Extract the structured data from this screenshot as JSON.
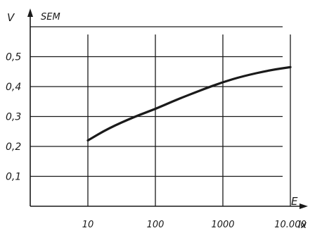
{
  "chart_data": {
    "type": "line",
    "title": "",
    "xlabel": "E",
    "xlabel_suffix": "lx",
    "ylabel": "V",
    "ylabel_suffix": "SEM",
    "x_scale": "log",
    "xlim": [
      10,
      17000
    ],
    "ylim": [
      0,
      0.6
    ],
    "x_ticks": [
      10,
      100,
      1000,
      10000
    ],
    "x_tick_labels": [
      "10",
      "100",
      "1000",
      "10.000"
    ],
    "y_ticks": [
      0.1,
      0.2,
      0.3,
      0.4,
      0.5
    ],
    "y_tick_labels": [
      "0,1",
      "0,2",
      "0,3",
      "0,4",
      "0,5"
    ],
    "grid": true,
    "series": [
      {
        "x": [
          10,
          20,
          50,
          100,
          200,
          500,
          1000,
          2000,
          5000,
          10000
        ],
        "y": [
          0.22,
          0.26,
          0.3,
          0.325,
          0.355,
          0.39,
          0.415,
          0.435,
          0.455,
          0.465
        ]
      }
    ]
  },
  "colors": {
    "ink": "#1a1a1a",
    "background": "#ffffff"
  }
}
